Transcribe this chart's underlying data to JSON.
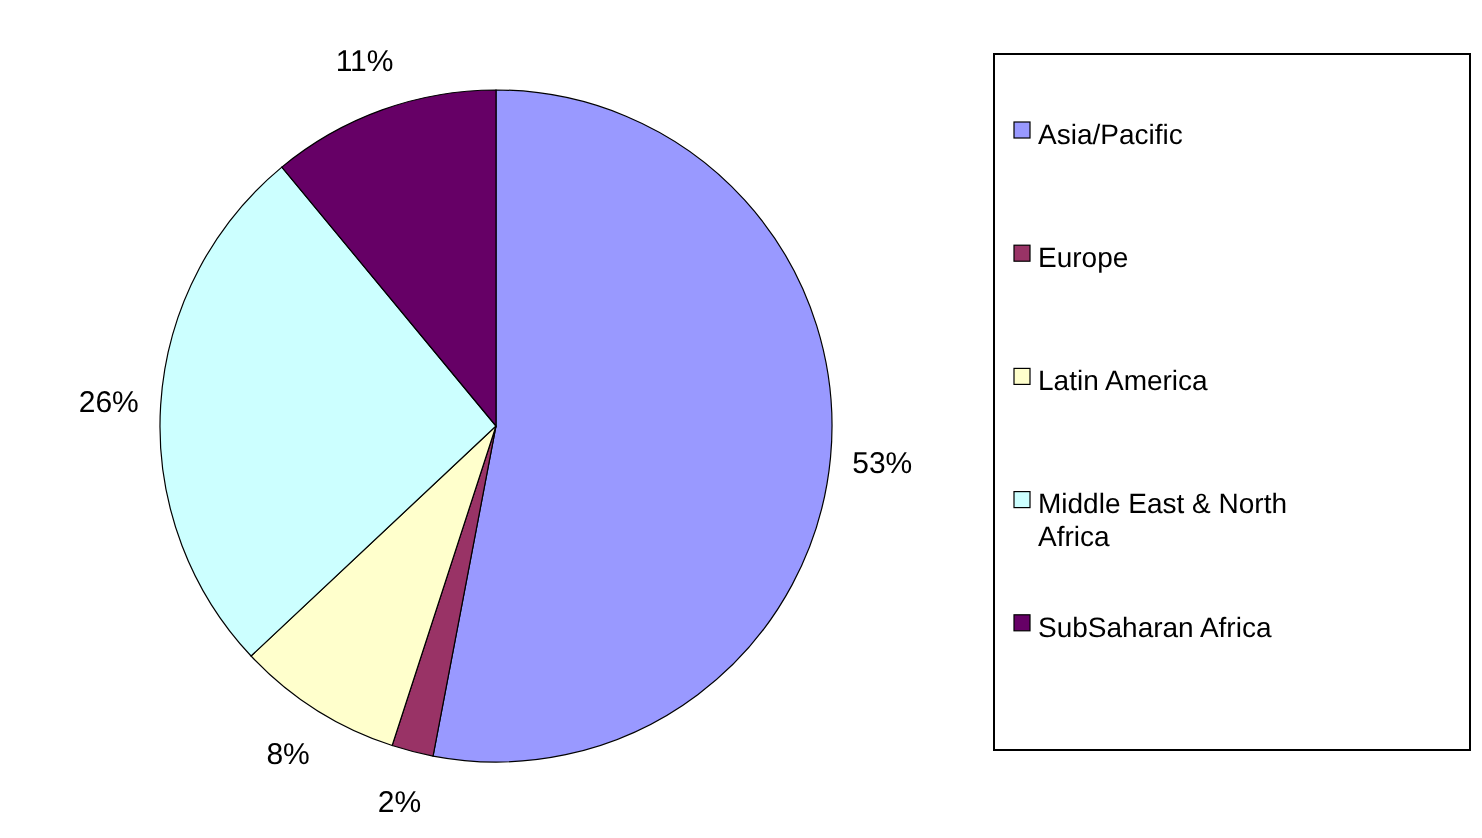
{
  "chart_data": {
    "type": "pie",
    "categories": [
      "Asia/Pacific",
      "Europe",
      "Latin America",
      "Middle East & North Africa",
      "SubSaharan Africa"
    ],
    "values": [
      53,
      2,
      8,
      26,
      11
    ],
    "colors": [
      "#9999ff",
      "#993366",
      "#ffffcc",
      "#ccffff",
      "#660066"
    ],
    "value_labels": [
      "53%",
      "2%",
      "8%",
      "26%",
      "11%"
    ],
    "legend": "right"
  }
}
